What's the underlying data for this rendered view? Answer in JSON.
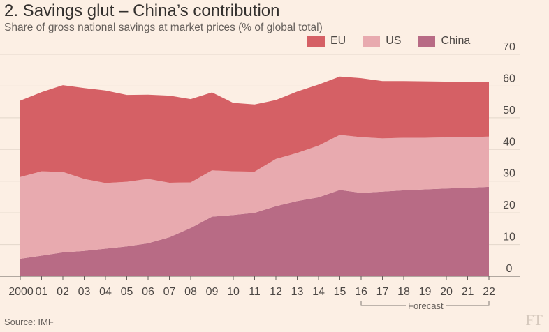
{
  "header": {
    "title": "2. Savings glut – China’s contribution",
    "subtitle": "Share of gross national savings at market prices (% of global total)"
  },
  "legend": [
    {
      "name": "EU",
      "color": "#d56065"
    },
    {
      "name": "US",
      "color": "#e8aaaf"
    },
    {
      "name": "China",
      "color": "#b86b85"
    }
  ],
  "annotation": {
    "forecast": "Forecast"
  },
  "footer": {
    "source": "Source: IMF",
    "logo": "FT"
  },
  "chart_data": {
    "type": "area",
    "stacked": true,
    "title": "2. Savings glut – China’s contribution",
    "subtitle": "Share of gross national savings at market prices (% of global total)",
    "ylim": [
      0,
      70
    ],
    "yticks": [
      0,
      10,
      20,
      30,
      40,
      50,
      60,
      70
    ],
    "y_axis_position": "right",
    "grid": true,
    "legend_placement": "top-right",
    "x": [
      2000,
      2001,
      2002,
      2003,
      2004,
      2005,
      2006,
      2007,
      2008,
      2009,
      2010,
      2011,
      2012,
      2013,
      2014,
      2015,
      2016,
      2017,
      2018,
      2019,
      2020,
      2021,
      2022
    ],
    "x_tick_labels": [
      "2000",
      "01",
      "02",
      "03",
      "04",
      "05",
      "06",
      "07",
      "08",
      "09",
      "10",
      "11",
      "12",
      "13",
      "14",
      "15",
      "16",
      "17",
      "18",
      "19",
      "20",
      "21",
      "22"
    ],
    "forecast_range": [
      2016,
      2022
    ],
    "series": [
      {
        "name": "China",
        "color": "#b86b85",
        "values": [
          5.5,
          6.5,
          7.5,
          8.0,
          8.7,
          9.4,
          10.4,
          12.3,
          15.2,
          18.8,
          19.3,
          20.0,
          22.1,
          23.7,
          24.9,
          27.2,
          26.3,
          26.7,
          27.1,
          27.4,
          27.7,
          27.9,
          28.2
        ]
      },
      {
        "name": "US",
        "color": "#e8aaaf",
        "values": [
          25.8,
          26.6,
          25.4,
          22.7,
          20.7,
          20.4,
          20.3,
          17.2,
          14.4,
          14.6,
          13.8,
          13.0,
          14.9,
          15.2,
          16.3,
          17.4,
          17.6,
          16.8,
          16.6,
          16.3,
          16.1,
          16.0,
          15.9
        ]
      },
      {
        "name": "EU",
        "color": "#d56065",
        "values": [
          24.1,
          25.0,
          27.4,
          28.7,
          29.2,
          27.4,
          26.6,
          27.5,
          26.3,
          24.6,
          21.6,
          21.2,
          18.6,
          19.4,
          19.3,
          18.4,
          18.6,
          18.1,
          17.9,
          17.8,
          17.6,
          17.4,
          17.1
        ]
      }
    ]
  }
}
